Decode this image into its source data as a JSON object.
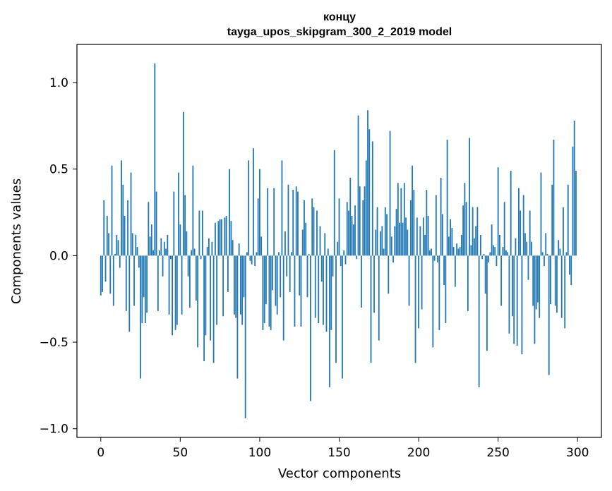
{
  "chart_data": {
    "type": "bar",
    "title": "концу",
    "subtitle": "tayga_upos_skipgram_300_2_2019 model",
    "xlabel": "Vector components",
    "ylabel": "Components values",
    "xlim": [
      -15,
      315
    ],
    "ylim": [
      -1.05,
      1.22
    ],
    "xticks": [
      0,
      50,
      100,
      150,
      200,
      250,
      300
    ],
    "xtick_labels": [
      "0",
      "50",
      "100",
      "150",
      "200",
      "250",
      "300"
    ],
    "yticks": [
      -1.0,
      -0.5,
      0.0,
      0.5,
      1.0
    ],
    "ytick_labels": [
      "−1.0",
      "−0.5",
      "0.0",
      "0.5",
      "1.0"
    ],
    "bar_color": "#1f77b4",
    "grid": false,
    "values": [
      -0.23,
      -0.21,
      0.32,
      -0.15,
      0.23,
      0.13,
      -0.22,
      0.52,
      -0.29,
      0.01,
      0.12,
      0.09,
      -0.07,
      0.55,
      0.41,
      0.23,
      -0.32,
      0.32,
      -0.44,
      0.48,
      0.13,
      -0.29,
      0.12,
      0.05,
      -0.07,
      -0.71,
      -0.39,
      -0.24,
      -0.39,
      -0.33,
      0.31,
      0.11,
      0.18,
      0.03,
      1.11,
      0.37,
      -0.32,
      0.03,
      0.1,
      -0.12,
      0.08,
      0.04,
      0.12,
      -0.34,
      -0.02,
      -0.46,
      0.37,
      -0.43,
      -0.4,
      0.48,
      0.18,
      -0.34,
      0.83,
      0.35,
      0.14,
      -0.12,
      -0.3,
      0.03,
      0.52,
      0.04,
      -0.26,
      -0.53,
      0.26,
      -0.02,
      0.26,
      -0.61,
      -0.46,
      0.05,
      0.1,
      -0.49,
      0.08,
      -0.62,
      0.19,
      -0.4,
      0.2,
      0.21,
      0.21,
      -0.35,
      0.22,
      0.23,
      -0.21,
      0.5,
      0.2,
      0.09,
      -0.34,
      -0.36,
      -0.71,
      0.07,
      -0.34,
      -0.4,
      -0.24,
      -0.94,
      0.02,
      0.55,
      -0.03,
      -0.05,
      0.62,
      -0.06,
      0.02,
      0.33,
      0.5,
      0.11,
      -0.43,
      -0.39,
      -0.28,
      0.39,
      -0.41,
      -0.43,
      -0.2,
      0.39,
      -0.29,
      -0.34,
      0.02,
      -0.24,
      0.55,
      -0.49,
      0.14,
      -0.12,
      0.41,
      -0.21,
      0.02,
      0.38,
      -0.41,
      0.4,
      0.37,
      -0.23,
      -0.41,
      0.15,
      0.32,
      0.19,
      -0.24,
      0.01,
      -0.84,
      0.33,
      0.28,
      -0.36,
      0.26,
      -0.39,
      0.17,
      -0.15,
      -0.4,
      0.13,
      -0.44,
      0.04,
      -0.76,
      -0.43,
      -0.12,
      0.61,
      -0.62,
      0.08,
      0.33,
      -0.06,
      -0.71,
      0.03,
      -0.05,
      0.31,
      0.26,
      0.45,
      0.23,
      0.18,
      0.29,
      -0.02,
      0.81,
      0.4,
      -0.3,
      0.32,
      0.4,
      0.55,
      0.84,
      0.73,
      -0.62,
      0.66,
      -0.33,
      0.15,
      0.28,
      -0.49,
      0.14,
      0.17,
      0.04,
      0.28,
      0.24,
      -0.22,
      0.72,
      0.11,
      -0.04,
      0.17,
      0.27,
      0.42,
      0.19,
      0.39,
      0.19,
      0.42,
      0.22,
      0.15,
      -0.29,
      0.32,
      0.52,
      0.38,
      -0.62,
      0.22,
      -0.42,
      0.17,
      -0.31,
      0.22,
      0.12,
      0.38,
      0.23,
      0.03,
      0.04,
      -0.53,
      -0.03,
      0.35,
      -0.04,
      -0.43,
      0.45,
      0.24,
      -0.17,
      -0.39,
      0.67,
      0.11,
      0.21,
      0.16,
      0.05,
      -0.18,
      0.07,
      0.04,
      0.05,
      0.12,
      0.29,
      0.42,
      0.31,
      -0.32,
      0.68,
      0.06,
      0.28,
      0.1,
      0.17,
      0.28,
      -0.76,
      0.12,
      -0.02,
      0.01,
      -0.22,
      -0.55,
      -0.04,
      0.02,
      0.18,
      0.06,
      0.05,
      -0.06,
      0.51,
      0.12,
      -0.29,
      0.05,
      0.31,
      0.03,
      0.02,
      -0.45,
      0.49,
      -0.35,
      -0.51,
      0.1,
      -0.52,
      0.39,
      0.26,
      -0.57,
      0.35,
      0.13,
      0.08,
      -0.14,
      0.26,
      0.08,
      -0.29,
      -0.51,
      -0.31,
      -0.27,
      -0.36,
      0.48,
      0.02,
      -0.06,
      0.13,
      0.01,
      -0.69,
      -0.28,
      0.41,
      0.67,
      -0.29,
      -0.33,
      0.09,
      0.04,
      -0.36,
      0.28,
      -0.42,
      0.02,
      0.41,
      -0.11,
      -0.17,
      0.63,
      0.78,
      0.49
    ]
  }
}
